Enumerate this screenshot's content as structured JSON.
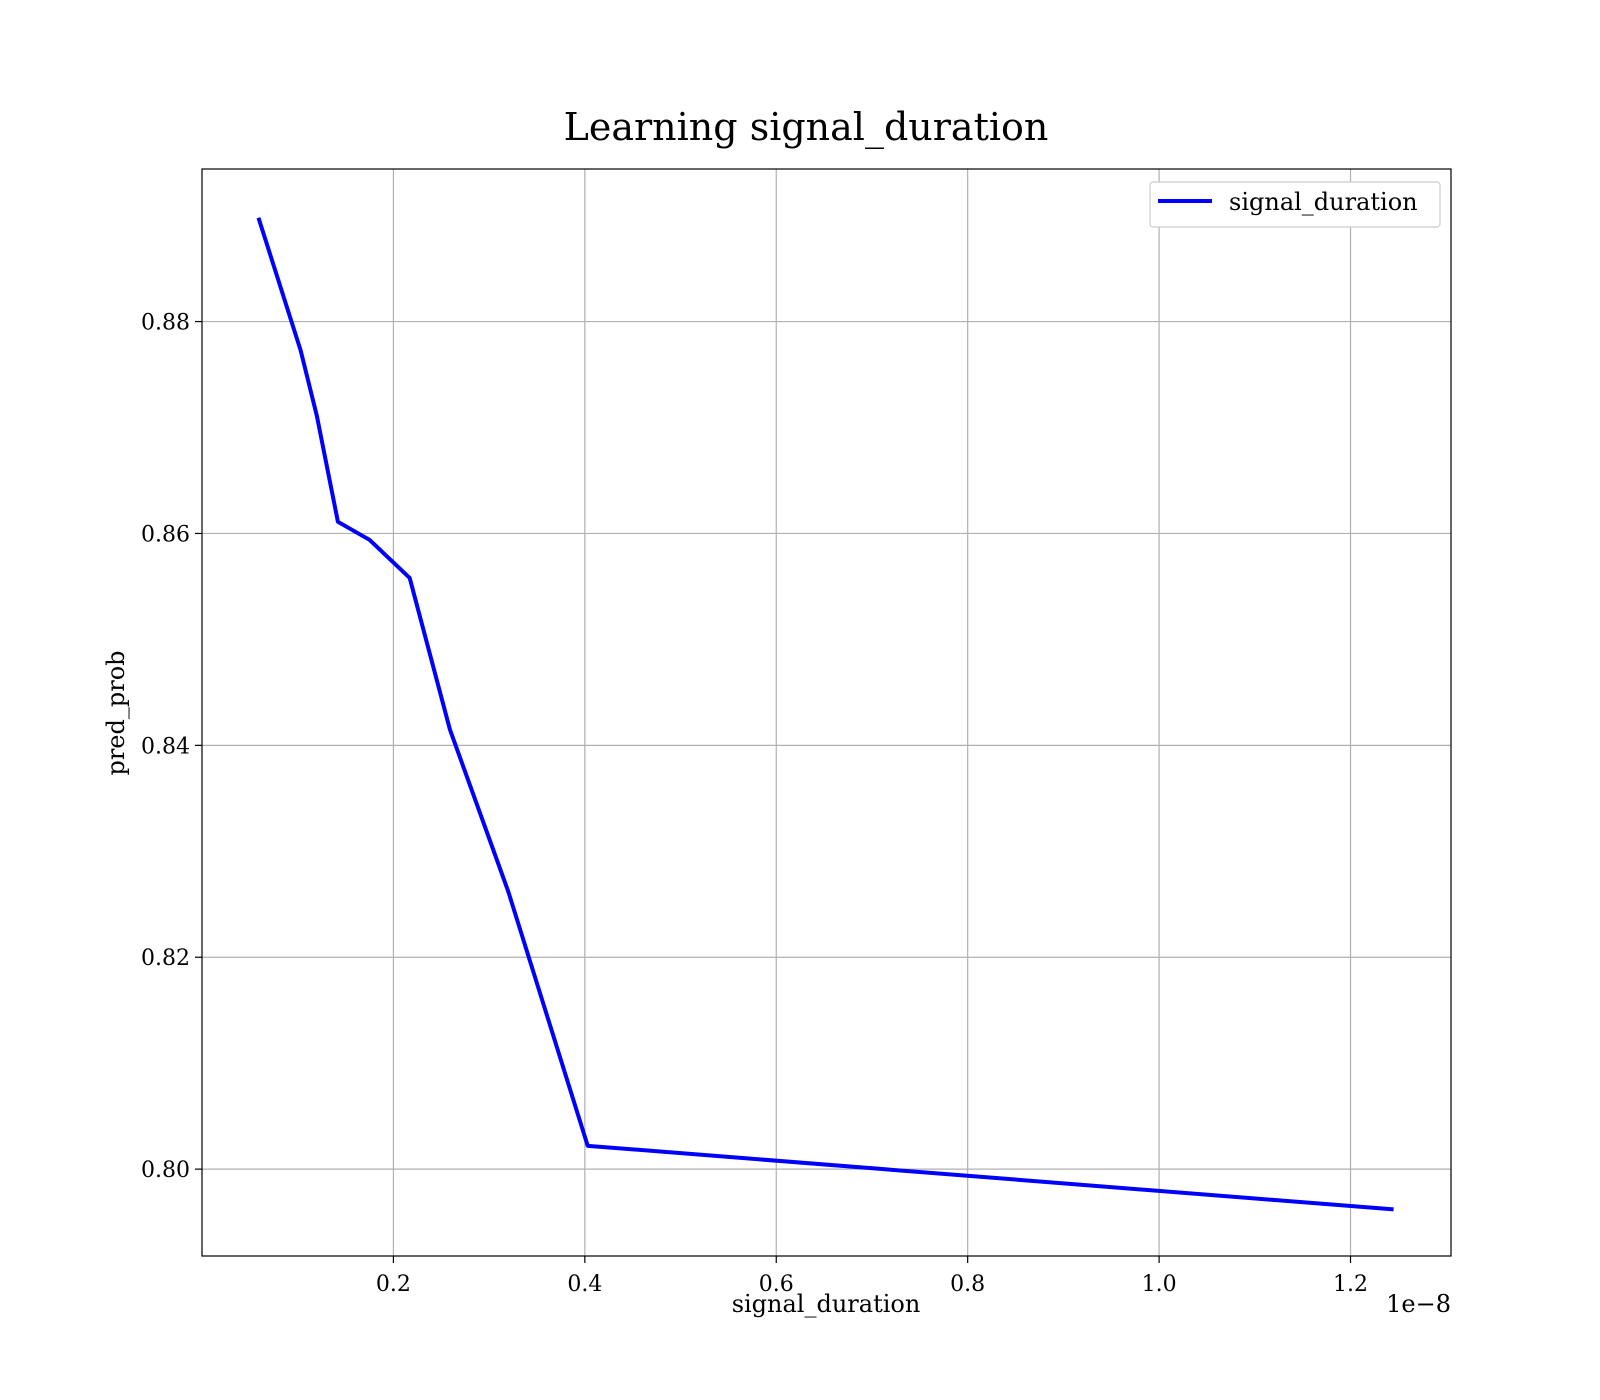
{
  "chart_data": {
    "type": "line",
    "title": "Learning signal_duration",
    "xlabel": "signal_duration",
    "ylabel": "pred_prob",
    "x_offset_text": "1e−8",
    "x_ticks": [
      {
        "value": 0.2,
        "label": "0.2"
      },
      {
        "value": 0.4,
        "label": "0.4"
      },
      {
        "value": 0.6,
        "label": "0.6"
      },
      {
        "value": 0.8,
        "label": "0.8"
      },
      {
        "value": 1.0,
        "label": "1.0"
      },
      {
        "value": 1.2,
        "label": "1.2"
      }
    ],
    "y_ticks": [
      {
        "value": 0.8,
        "label": "0.80"
      },
      {
        "value": 0.82,
        "label": "0.82"
      },
      {
        "value": 0.84,
        "label": "0.84"
      },
      {
        "value": 0.86,
        "label": "0.86"
      },
      {
        "value": 0.88,
        "label": "0.88"
      }
    ],
    "xlim": [
      0.0,
      1.305
    ],
    "ylim": [
      0.7918,
      0.8944
    ],
    "grid": true,
    "legend_position": "top-right",
    "series": [
      {
        "name": "signal_duration",
        "color": "#0000ff",
        "x": [
          0.059,
          0.103,
          0.12,
          0.142,
          0.175,
          0.217,
          0.259,
          0.32,
          0.403,
          1.245
        ],
        "y": [
          0.8898,
          0.8773,
          0.8711,
          0.8611,
          0.8594,
          0.8558,
          0.8415,
          0.8262,
          0.8022,
          0.7962
        ]
      }
    ]
  }
}
